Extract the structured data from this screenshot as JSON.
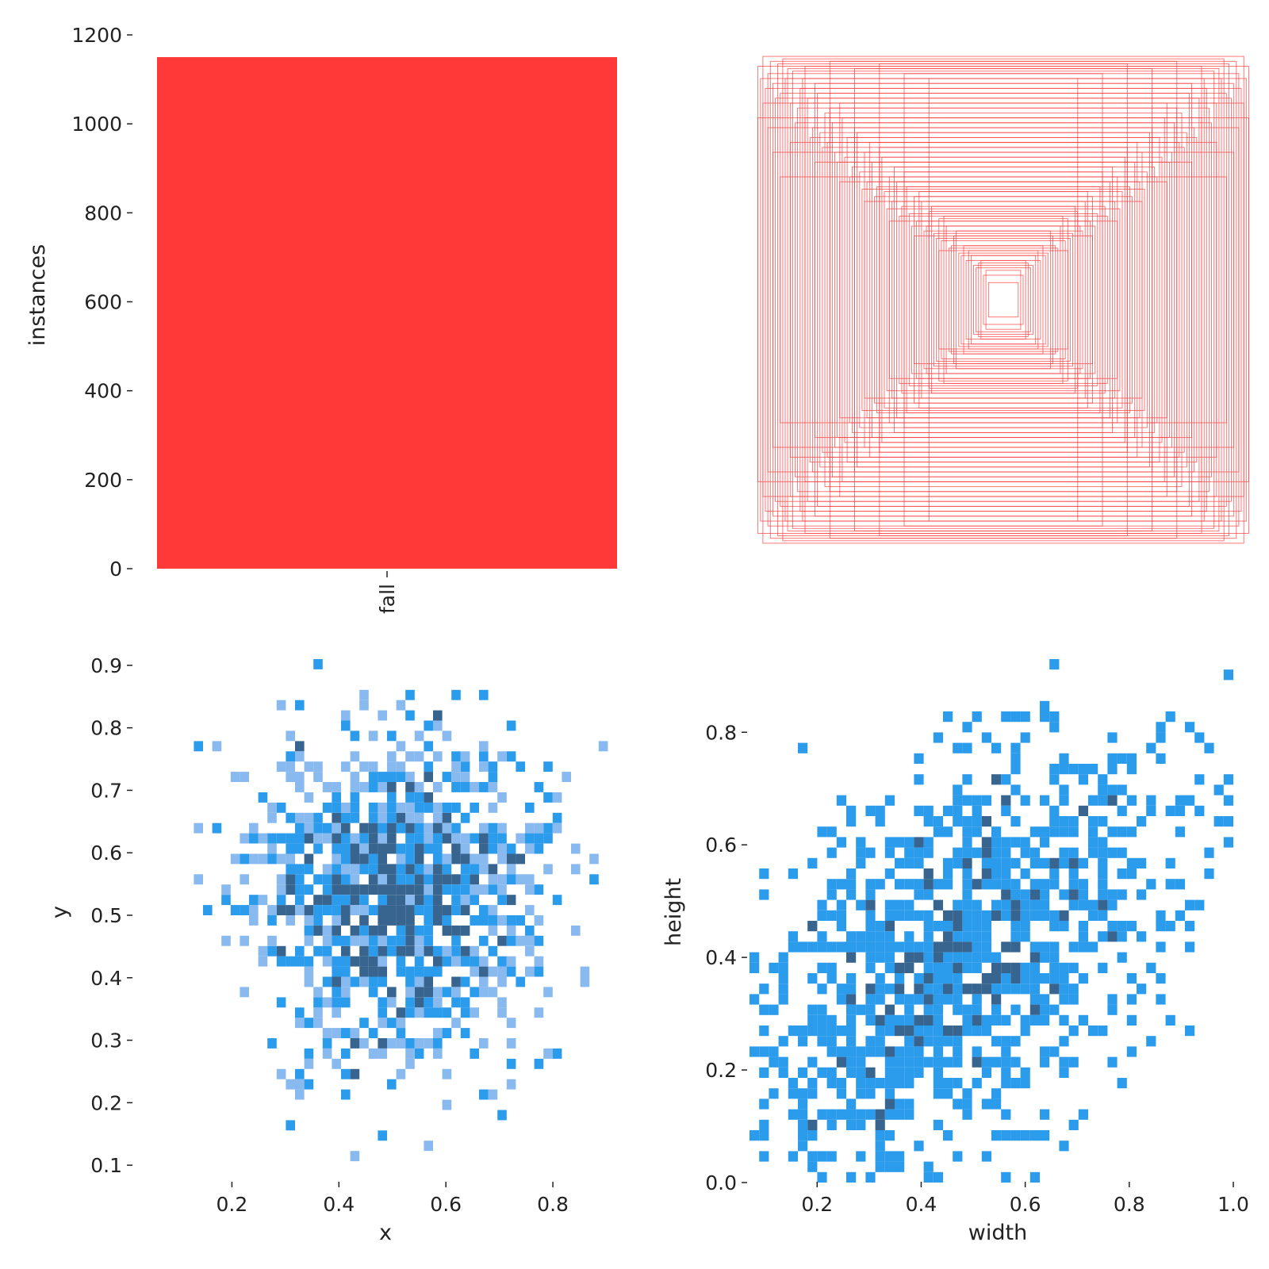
{
  "colors": {
    "bar": "#ff3838",
    "box_stroke": "#ff3838",
    "hist_light": "#88b9ef",
    "hist_mid": "#2b9bec",
    "hist_dark": "#37658f",
    "axis": "#222222"
  },
  "chart_data": [
    {
      "id": "labels-bar",
      "type": "bar",
      "categories": [
        "fall"
      ],
      "values": [
        1150
      ],
      "ylabel": "instances",
      "xlabel": "",
      "ylim": [
        0,
        1200
      ],
      "yticks": [
        0,
        200,
        400,
        600,
        800,
        1000,
        1200
      ],
      "ytick_labels": [
        "0",
        "200",
        "400",
        "600",
        "800",
        "1000",
        "1200"
      ],
      "grid": false
    },
    {
      "id": "box-overlay",
      "type": "box-outlines",
      "title": "",
      "note_boxes": "centered boxes, width/height fractions of the plot area",
      "boxes": [
        [
          0.99,
          0.95
        ],
        [
          0.97,
          0.99
        ],
        [
          0.95,
          0.92
        ],
        [
          0.93,
          0.88
        ],
        [
          0.91,
          0.96
        ],
        [
          0.9,
          0.84
        ],
        [
          0.88,
          0.9
        ],
        [
          0.86,
          0.8
        ],
        [
          0.85,
          0.93
        ],
        [
          0.83,
          0.78
        ],
        [
          0.82,
          0.86
        ],
        [
          0.8,
          0.74
        ],
        [
          0.79,
          0.82
        ],
        [
          0.77,
          0.7
        ],
        [
          0.76,
          0.88
        ],
        [
          0.74,
          0.68
        ],
        [
          0.72,
          0.76
        ],
        [
          0.71,
          0.64
        ],
        [
          0.69,
          0.72
        ],
        [
          0.68,
          0.6
        ],
        [
          0.66,
          0.8
        ],
        [
          0.64,
          0.58
        ],
        [
          0.63,
          0.66
        ],
        [
          0.61,
          0.54
        ],
        [
          0.6,
          0.7
        ],
        [
          0.58,
          0.52
        ],
        [
          0.56,
          0.6
        ],
        [
          0.55,
          0.48
        ],
        [
          0.53,
          0.56
        ],
        [
          0.51,
          0.46
        ],
        [
          0.5,
          0.62
        ],
        [
          0.48,
          0.44
        ],
        [
          0.46,
          0.5
        ],
        [
          0.45,
          0.4
        ],
        [
          0.43,
          0.48
        ],
        [
          0.41,
          0.38
        ],
        [
          0.4,
          0.52
        ],
        [
          0.38,
          0.35
        ],
        [
          0.36,
          0.42
        ],
        [
          0.35,
          0.32
        ],
        [
          0.33,
          0.4
        ],
        [
          0.31,
          0.3
        ],
        [
          0.3,
          0.36
        ],
        [
          0.28,
          0.27
        ],
        [
          0.26,
          0.33
        ],
        [
          0.25,
          0.24
        ],
        [
          0.23,
          0.3
        ],
        [
          0.21,
          0.22
        ],
        [
          0.2,
          0.26
        ],
        [
          0.18,
          0.19
        ],
        [
          0.16,
          0.22
        ],
        [
          0.15,
          0.16
        ],
        [
          0.13,
          0.18
        ],
        [
          0.11,
          0.13
        ],
        [
          0.1,
          0.15
        ],
        [
          0.08,
          0.1
        ],
        [
          0.07,
          0.12
        ],
        [
          0.06,
          0.07
        ],
        [
          0.98,
          0.9
        ],
        [
          0.94,
          0.97
        ],
        [
          0.92,
          0.82
        ],
        [
          0.87,
          0.94
        ],
        [
          0.84,
          0.72
        ],
        [
          0.81,
          0.9
        ],
        [
          0.78,
          0.66
        ],
        [
          0.75,
          0.84
        ],
        [
          0.73,
          0.62
        ],
        [
          0.7,
          0.78
        ],
        [
          0.67,
          0.56
        ],
        [
          0.65,
          0.74
        ],
        [
          0.62,
          0.5
        ],
        [
          0.59,
          0.68
        ],
        [
          0.57,
          0.45
        ],
        [
          0.54,
          0.64
        ],
        [
          0.52,
          0.42
        ],
        [
          0.49,
          0.58
        ],
        [
          0.47,
          0.37
        ],
        [
          0.44,
          0.54
        ],
        [
          0.42,
          0.34
        ],
        [
          0.39,
          0.46
        ],
        [
          0.37,
          0.3
        ],
        [
          0.34,
          0.44
        ],
        [
          0.32,
          0.28
        ],
        [
          0.29,
          0.38
        ],
        [
          0.27,
          0.25
        ],
        [
          0.24,
          0.34
        ],
        [
          0.22,
          0.21
        ],
        [
          0.19,
          0.28
        ],
        [
          0.17,
          0.18
        ],
        [
          0.14,
          0.2
        ],
        [
          0.12,
          0.14
        ],
        [
          0.09,
          0.16
        ],
        [
          0.96,
          0.86
        ],
        [
          0.89,
          0.98
        ],
        [
          0.8,
          0.95
        ],
        [
          0.7,
          0.97
        ],
        [
          0.6,
          0.94
        ],
        [
          0.5,
          0.96
        ],
        [
          0.4,
          0.92
        ],
        [
          0.3,
          0.9
        ],
        [
          0.97,
          0.8
        ],
        [
          0.95,
          0.7
        ],
        [
          0.93,
          0.6
        ],
        [
          0.9,
          0.5
        ],
        [
          0.99,
          0.74
        ],
        [
          0.86,
          0.64
        ],
        [
          0.76,
          0.56
        ],
        [
          0.66,
          0.48
        ],
        [
          0.56,
          0.4
        ],
        [
          0.46,
          0.32
        ],
        [
          0.36,
          0.26
        ],
        [
          0.26,
          0.2
        ]
      ]
    },
    {
      "id": "xy-hist",
      "type": "heatmap",
      "xlabel": "x",
      "ylabel": "y",
      "xlim": [
        0.06,
        0.92
      ],
      "ylim": [
        0.09,
        0.91
      ],
      "xticks": [
        0.2,
        0.4,
        0.6,
        0.8
      ],
      "xtick_labels": [
        "0.2",
        "0.4",
        "0.6",
        "0.8"
      ],
      "yticks": [
        0.1,
        0.2,
        0.3,
        0.4,
        0.5,
        0.6,
        0.7,
        0.8,
        0.9
      ],
      "ytick_labels": [
        "0.1",
        "0.2",
        "0.3",
        "0.4",
        "0.5",
        "0.6",
        "0.7",
        "0.8",
        "0.9"
      ],
      "bins": 50,
      "center": [
        0.5,
        0.54
      ],
      "spread": [
        0.135,
        0.13
      ],
      "samples": 1150,
      "seed": 11,
      "grid": false
    },
    {
      "id": "wh-hist",
      "type": "heatmap",
      "xlabel": "width",
      "ylabel": "height",
      "xlim": [
        0.07,
        1.0
      ],
      "ylim": [
        0.0,
        0.93
      ],
      "xticks": [
        0.2,
        0.4,
        0.6,
        0.8,
        1.0
      ],
      "xtick_labels": [
        "0.2",
        "0.4",
        "0.6",
        "0.8",
        "1.0"
      ],
      "yticks": [
        0.0,
        0.2,
        0.4,
        0.6,
        0.8
      ],
      "ytick_labels": [
        "0.0",
        "0.2",
        "0.4",
        "0.6",
        "0.8"
      ],
      "bins": 50,
      "center": [
        0.45,
        0.38
      ],
      "spread": [
        0.22,
        0.2
      ],
      "correlation": 0.5,
      "samples": 1150,
      "seed": 23,
      "grid": false
    }
  ]
}
